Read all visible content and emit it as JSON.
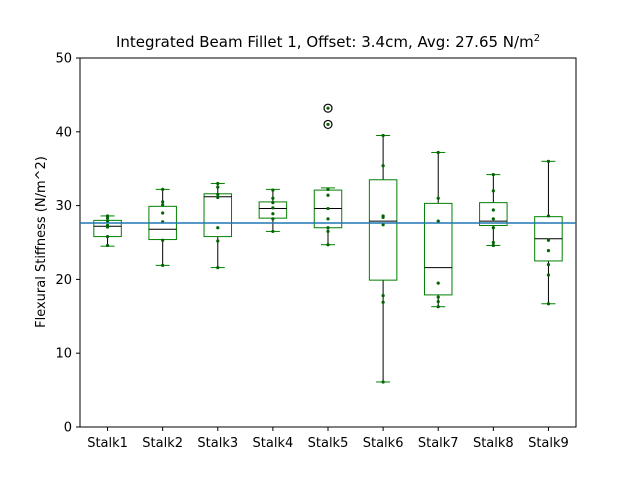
{
  "chart_data": {
    "type": "box",
    "title": "Integrated Beam Fillet 1, Offset: 3.4cm, Avg: 27.65 N/m",
    "title_superscript": "2",
    "xlabel": "",
    "ylabel": "Flexural Stiffness (N/m^2)",
    "ylim": [
      0,
      50
    ],
    "yticks": [
      0,
      10,
      20,
      30,
      40,
      50
    ],
    "grid": false,
    "reference_line": {
      "value": 27.65,
      "color": "#1f77b4"
    },
    "box_color": "#008000",
    "median_color": "#000000",
    "whisker_color": "#000000",
    "point_color": "#006400",
    "categories": [
      "Stalk1",
      "Stalk2",
      "Stalk3",
      "Stalk4",
      "Stalk5",
      "Stalk6",
      "Stalk7",
      "Stalk8",
      "Stalk9"
    ],
    "boxes": [
      {
        "name": "Stalk1",
        "q1": 25.8,
        "median": 27.2,
        "q3": 28.0,
        "whislo": 24.5,
        "whishi": 28.6,
        "fliers": [],
        "points": [
          24.6,
          25.8,
          27.1,
          27.3,
          27.9,
          28.3,
          28.6
        ]
      },
      {
        "name": "Stalk2",
        "q1": 25.4,
        "median": 26.8,
        "q3": 29.9,
        "whislo": 21.9,
        "whishi": 32.2,
        "fliers": [],
        "points": [
          21.9,
          25.3,
          27.8,
          29.0,
          30.1,
          30.5,
          32.2
        ]
      },
      {
        "name": "Stalk3",
        "q1": 25.8,
        "median": 31.2,
        "q3": 31.6,
        "whislo": 21.6,
        "whishi": 33.0,
        "fliers": [],
        "points": [
          21.6,
          25.2,
          27.0,
          31.1,
          31.5,
          32.5,
          33.0
        ]
      },
      {
        "name": "Stalk4",
        "q1": 28.3,
        "median": 29.6,
        "q3": 30.5,
        "whislo": 26.5,
        "whishi": 32.2,
        "fliers": [],
        "points": [
          26.5,
          28.2,
          28.9,
          29.7,
          30.4,
          31.0,
          32.1
        ]
      },
      {
        "name": "Stalk5",
        "q1": 27.0,
        "median": 29.6,
        "q3": 32.1,
        "whislo": 24.7,
        "whishi": 32.4,
        "fliers": [
          41.0,
          43.2
        ],
        "points": [
          24.7,
          26.5,
          27.0,
          28.2,
          29.6,
          31.4,
          32.2
        ]
      },
      {
        "name": "Stalk6",
        "q1": 19.9,
        "median": 27.9,
        "q3": 33.5,
        "whislo": 6.1,
        "whishi": 39.5,
        "fliers": [],
        "points": [
          6.1,
          16.9,
          17.8,
          27.4,
          28.4,
          28.6,
          35.4,
          39.5
        ]
      },
      {
        "name": "Stalk7",
        "q1": 17.9,
        "median": 21.6,
        "q3": 30.3,
        "whislo": 16.3,
        "whishi": 37.2,
        "fliers": [],
        "points": [
          16.3,
          17.0,
          17.6,
          19.5,
          27.9,
          31.0,
          37.2
        ]
      },
      {
        "name": "Stalk8",
        "q1": 27.3,
        "median": 27.9,
        "q3": 30.4,
        "whislo": 24.6,
        "whishi": 34.2,
        "fliers": [],
        "points": [
          24.6,
          25.0,
          27.0,
          28.2,
          29.4,
          32.0,
          34.2
        ]
      },
      {
        "name": "Stalk9",
        "q1": 22.5,
        "median": 25.5,
        "q3": 28.5,
        "whislo": 16.7,
        "whishi": 36.0,
        "fliers": [],
        "points": [
          16.7,
          20.6,
          22.0,
          23.9,
          25.3,
          28.6,
          36.0
        ]
      }
    ]
  }
}
